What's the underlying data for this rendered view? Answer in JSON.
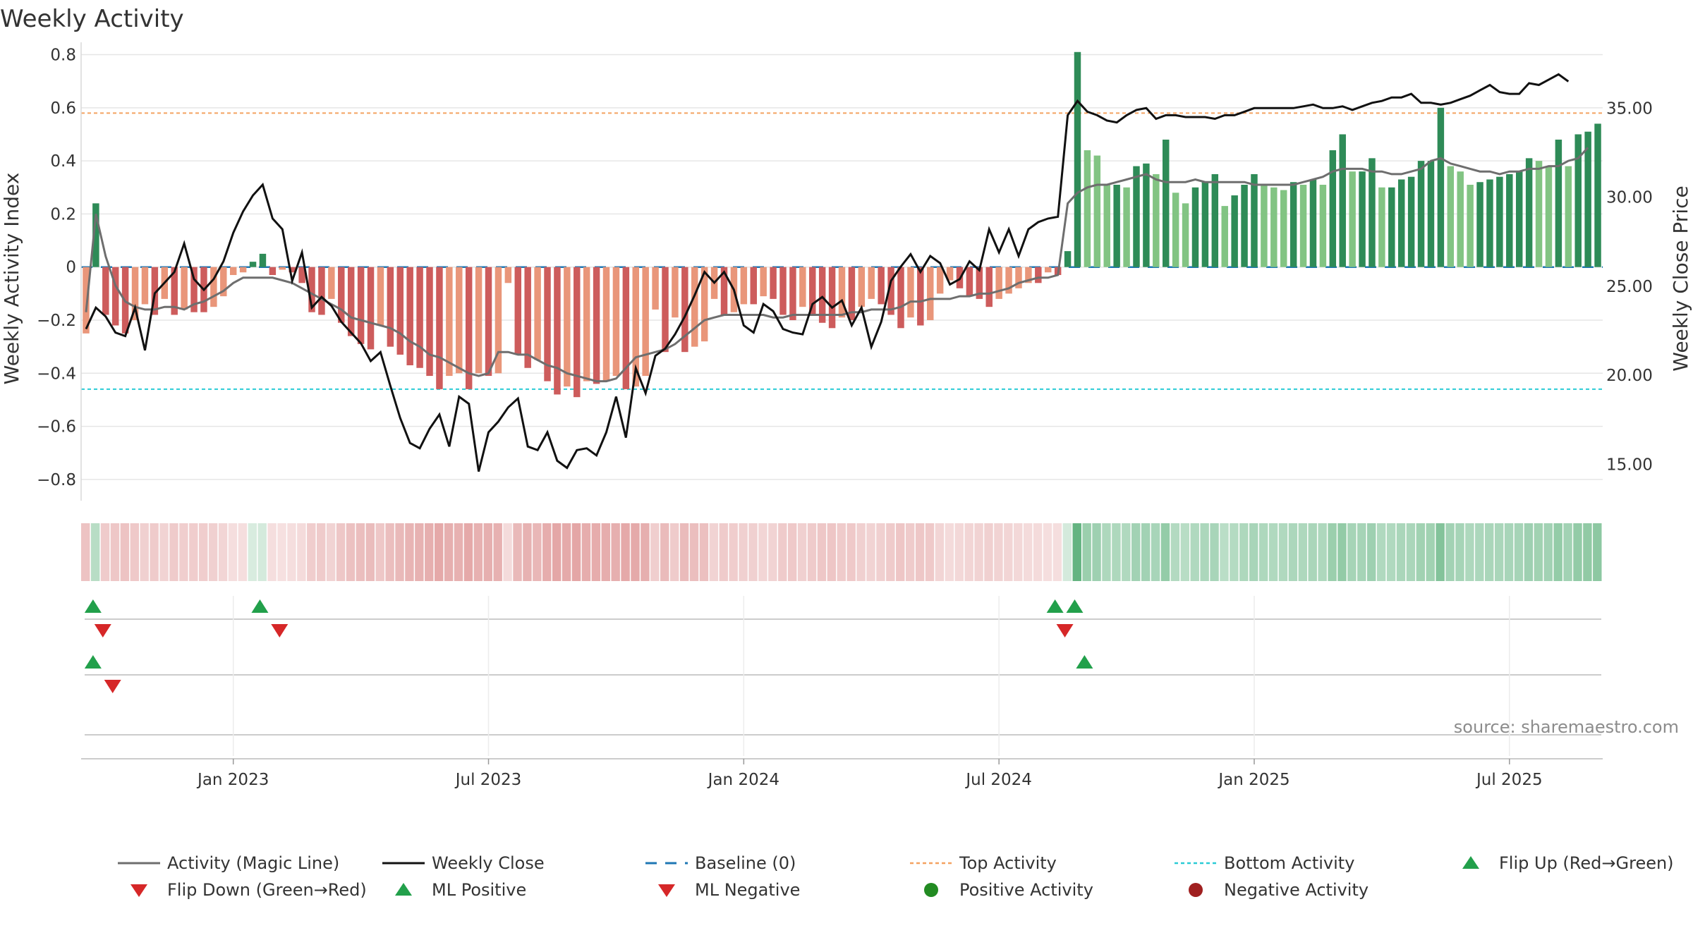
{
  "chart_data": {
    "type": "bar",
    "title": "Weekly Activity",
    "left_axis": {
      "label": "Weekly Activity Index",
      "ylim": [
        -0.88,
        0.82
      ],
      "ticks": [
        0.8,
        0.6,
        0.4,
        0.2,
        0,
        -0.2,
        -0.4,
        -0.6,
        -0.8
      ],
      "tick_labels": [
        "0.8",
        "0.6",
        "0.4",
        "0.2",
        "0",
        "−0.2",
        "−0.4",
        "−0.6",
        "−0.8"
      ]
    },
    "right_axis": {
      "label": "Weekly Close Price",
      "ylim": [
        12.96,
        38.3
      ],
      "ticks": [
        35,
        30,
        25,
        20,
        15
      ],
      "tick_labels": [
        "35.00",
        "30.00",
        "25.00",
        "20.00",
        "15.00"
      ]
    },
    "x_axis": {
      "ticks": [
        "Jan 2023",
        "Jul 2023",
        "Jan 2024",
        "Jul 2024",
        "Jan 2025",
        "Jul 2025"
      ],
      "tick_weeks": [
        15,
        41,
        67,
        93,
        119,
        145
      ]
    },
    "reference_lines": {
      "top_activity": 0.58,
      "bottom_activity": -0.46,
      "baseline": 0
    },
    "activity": [
      -0.25,
      0.24,
      -0.18,
      -0.22,
      -0.25,
      -0.2,
      -0.14,
      -0.18,
      -0.12,
      -0.18,
      -0.16,
      -0.17,
      -0.17,
      -0.15,
      -0.11,
      -0.03,
      -0.02,
      0.02,
      0.05,
      -0.03,
      -0.01,
      -0.02,
      -0.06,
      -0.17,
      -0.18,
      -0.12,
      -0.21,
      -0.26,
      -0.29,
      -0.31,
      -0.22,
      -0.3,
      -0.33,
      -0.37,
      -0.38,
      -0.41,
      -0.46,
      -0.41,
      -0.4,
      -0.46,
      -0.4,
      -0.41,
      -0.4,
      -0.06,
      -0.33,
      -0.38,
      -0.35,
      -0.43,
      -0.48,
      -0.45,
      -0.49,
      -0.43,
      -0.44,
      -0.43,
      -0.41,
      -0.46,
      -0.45,
      -0.41,
      -0.16,
      -0.32,
      -0.19,
      -0.32,
      -0.3,
      -0.28,
      -0.12,
      -0.18,
      -0.17,
      -0.14,
      -0.14,
      -0.11,
      -0.12,
      -0.18,
      -0.2,
      -0.15,
      -0.18,
      -0.21,
      -0.23,
      -0.19,
      -0.2,
      -0.15,
      -0.12,
      -0.14,
      -0.18,
      -0.23,
      -0.19,
      -0.22,
      -0.2,
      -0.1,
      -0.05,
      -0.08,
      -0.11,
      -0.12,
      -0.15,
      -0.12,
      -0.1,
      -0.08,
      -0.06,
      -0.06,
      -0.02,
      -0.03,
      0.06,
      0.81,
      0.44,
      0.42,
      0.31,
      0.31,
      0.3,
      0.38,
      0.39,
      0.35,
      0.48,
      0.28,
      0.24,
      0.3,
      0.32,
      0.35,
      0.23,
      0.27,
      0.31,
      0.35,
      0.31,
      0.3,
      0.29,
      0.32,
      0.31,
      0.33,
      0.31,
      0.44,
      0.5,
      0.36,
      0.36,
      0.41,
      0.3,
      0.3,
      0.33,
      0.34,
      0.4,
      0.4,
      0.6,
      0.38,
      0.36,
      0.31,
      0.32,
      0.33,
      0.34,
      0.35,
      0.36,
      0.41,
      0.4,
      0.38,
      0.48,
      0.38,
      0.5,
      0.51,
      0.54
    ],
    "magic_line": [
      -0.17,
      0.2,
      0.04,
      -0.07,
      -0.13,
      -0.15,
      -0.16,
      -0.16,
      -0.15,
      -0.15,
      -0.16,
      -0.14,
      -0.13,
      -0.11,
      -0.09,
      -0.06,
      -0.04,
      -0.04,
      -0.04,
      -0.04,
      -0.05,
      -0.06,
      -0.08,
      -0.1,
      -0.12,
      -0.14,
      -0.16,
      -0.19,
      -0.2,
      -0.21,
      -0.22,
      -0.23,
      -0.25,
      -0.28,
      -0.3,
      -0.33,
      -0.34,
      -0.36,
      -0.38,
      -0.4,
      -0.41,
      -0.4,
      -0.32,
      -0.32,
      -0.33,
      -0.33,
      -0.35,
      -0.37,
      -0.38,
      -0.4,
      -0.41,
      -0.42,
      -0.43,
      -0.43,
      -0.42,
      -0.38,
      -0.34,
      -0.33,
      -0.32,
      -0.31,
      -0.29,
      -0.26,
      -0.23,
      -0.2,
      -0.19,
      -0.18,
      -0.18,
      -0.18,
      -0.18,
      -0.18,
      -0.19,
      -0.19,
      -0.18,
      -0.18,
      -0.18,
      -0.18,
      -0.18,
      -0.18,
      -0.17,
      -0.17,
      -0.16,
      -0.16,
      -0.16,
      -0.15,
      -0.13,
      -0.13,
      -0.12,
      -0.12,
      -0.12,
      -0.11,
      -0.11,
      -0.1,
      -0.1,
      -0.09,
      -0.08,
      -0.06,
      -0.05,
      -0.04,
      -0.04,
      -0.03,
      0.24,
      0.28,
      0.3,
      0.31,
      0.31,
      0.32,
      0.33,
      0.34,
      0.35,
      0.33,
      0.32,
      0.32,
      0.32,
      0.33,
      0.32,
      0.32,
      0.32,
      0.32,
      0.32,
      0.31,
      0.31,
      0.31,
      0.31,
      0.31,
      0.32,
      0.33,
      0.34,
      0.36,
      0.37,
      0.37,
      0.37,
      0.36,
      0.36,
      0.35,
      0.35,
      0.36,
      0.37,
      0.4,
      0.41,
      0.39,
      0.38,
      0.37,
      0.36,
      0.36,
      0.35,
      0.36,
      0.36,
      0.37,
      0.37,
      0.38,
      0.38,
      0.4,
      0.41,
      0.45
    ],
    "weekly_close": [
      22.6,
      23.8,
      23.3,
      22.4,
      22.2,
      23.8,
      21.4,
      24.6,
      25.2,
      25.8,
      27.4,
      25.4,
      24.8,
      25.4,
      26.4,
      28.0,
      29.2,
      30.1,
      30.7,
      28.8,
      28.2,
      25.3,
      26.9,
      23.8,
      24.4,
      23.9,
      23.0,
      22.4,
      21.8,
      20.8,
      21.3,
      19.4,
      17.6,
      16.2,
      15.9,
      17.0,
      17.8,
      16.0,
      18.8,
      18.4,
      14.6,
      16.8,
      17.4,
      18.2,
      18.7,
      16.0,
      15.8,
      16.8,
      15.2,
      14.8,
      15.8,
      15.9,
      15.5,
      16.8,
      18.8,
      16.5,
      20.4,
      19.0,
      21.1,
      21.5,
      22.3,
      23.3,
      24.5,
      25.8,
      25.2,
      25.8,
      24.8,
      22.8,
      22.4,
      24.0,
      23.6,
      22.6,
      22.4,
      22.3,
      24.0,
      24.4,
      23.8,
      24.2,
      22.8,
      23.8,
      21.6,
      23.0,
      25.3,
      26.1,
      26.8,
      25.8,
      26.7,
      26.3,
      25.1,
      25.4,
      26.4,
      25.9,
      28.2,
      26.9,
      28.2,
      26.7,
      28.2,
      28.6,
      28.8,
      28.9,
      34.6,
      35.4,
      34.8,
      34.6,
      34.3,
      34.2,
      34.6,
      34.9,
      35.0,
      34.4,
      34.6,
      34.6,
      34.5,
      34.5,
      34.5,
      34.4,
      34.6,
      34.6,
      34.8,
      35.0,
      35.0,
      35.0,
      35.0,
      35.0,
      35.1,
      35.2,
      35.0,
      35.0,
      35.1,
      34.9,
      35.1,
      35.3,
      35.4,
      35.6,
      35.6,
      35.8,
      35.3,
      35.3,
      35.2,
      35.3,
      35.5,
      35.7,
      36.0,
      36.3,
      35.9,
      35.8,
      35.8,
      36.4,
      36.3,
      36.6,
      36.9,
      36.5
    ],
    "panels": {
      "flip_markers": {
        "up_weeks": [
          1,
          18,
          99,
          101
        ],
        "down_weeks": [
          2,
          20,
          100
        ]
      },
      "ml_markers": {
        "positive_weeks": [
          1,
          102
        ],
        "negative_weeks": [
          3
        ]
      },
      "row3_markers": []
    },
    "legend": [
      "Activity (Magic Line)",
      "Weekly Close",
      "Baseline (0)",
      "Top Activity",
      "Bottom Activity",
      "Flip Up (Red→Green)",
      "Flip Down (Green→Red)",
      "ML Positive",
      "ML Negative",
      "Positive Activity",
      "Negative Activity"
    ],
    "source": "source: sharemaestro.com"
  },
  "colors": {
    "pos_dark": "#2e8b57",
    "pos_mid": "#3aa05f",
    "pos_light": "#82c483",
    "neg_dark": "#cd5c5c",
    "neg_light": "#e9967a",
    "magic_line": "#6e6e6e",
    "close": "#111111",
    "baseline": "#1f77b4",
    "top_line": "#f4a261",
    "bottom_line": "#2bcbd6",
    "flip_up": "#22a04b",
    "flip_down": "#d62728",
    "pos_dot": "#228b22",
    "neg_dot": "#a02020",
    "grid": "#e6e6e6"
  }
}
